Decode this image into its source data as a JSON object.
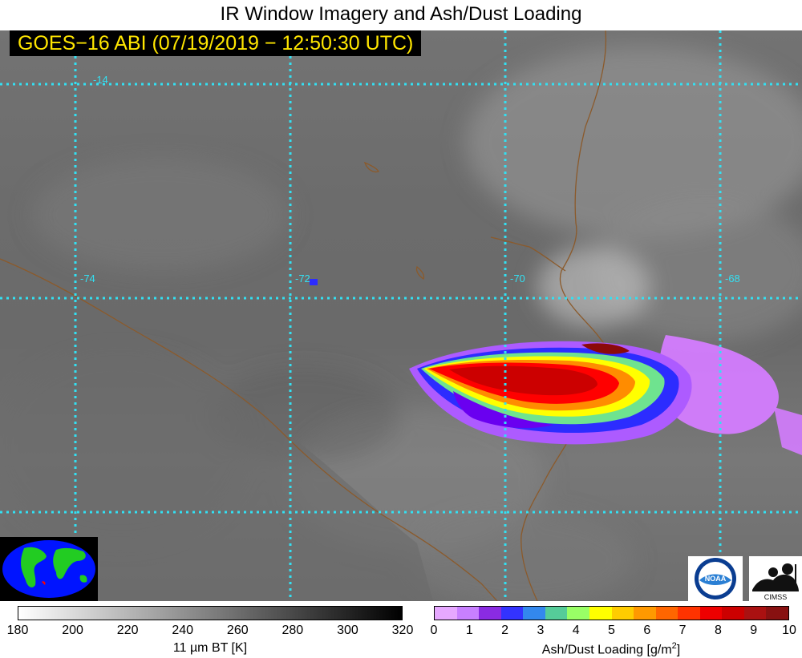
{
  "title": "IR Window Imagery and Ash/Dust Loading",
  "banner": "GOES−16 ABI (07/19/2019 − 12:50:30 UTC)",
  "grid": {
    "color": "#33e0f2",
    "lat_label": "-14",
    "lon_labels": [
      "-74",
      "-72",
      "-70",
      "-68"
    ]
  },
  "plume_colors": [
    "#d47cff",
    "#ad5bff",
    "#6a00f0",
    "#2c2cff",
    "#5a9cff",
    "#6fe38f",
    "#9bff6a",
    "#ffff00",
    "#ffc400",
    "#ff8c00",
    "#ff5500",
    "#ff0000",
    "#cc0000",
    "#8b0a0a"
  ],
  "ir_colorbar": {
    "ticks": [
      "180",
      "200",
      "220",
      "240",
      "260",
      "280",
      "300",
      "320"
    ],
    "label": "11 µm BT [K]"
  },
  "ash_colorbar": {
    "colors": [
      "#e6a8ff",
      "#c880ff",
      "#8a2be2",
      "#3333ff",
      "#3388ee",
      "#55cc99",
      "#99ff66",
      "#ffff00",
      "#ffcc00",
      "#ff9900",
      "#ff6600",
      "#ff3300",
      "#ee0000",
      "#cc0000",
      "#aa1111",
      "#881111"
    ],
    "ticks": [
      "0",
      "1",
      "2",
      "3",
      "4",
      "5",
      "6",
      "7",
      "8",
      "9",
      "10"
    ],
    "label": "Ash/Dust Loading [g/m",
    "label_sup": "2",
    "label_end": "]"
  },
  "logos": {
    "noaa": "NOAA",
    "cimss": "CIMSS"
  },
  "icons": [
    "globe-icon",
    "noaa-logo-icon",
    "cimss-logo-icon"
  ]
}
